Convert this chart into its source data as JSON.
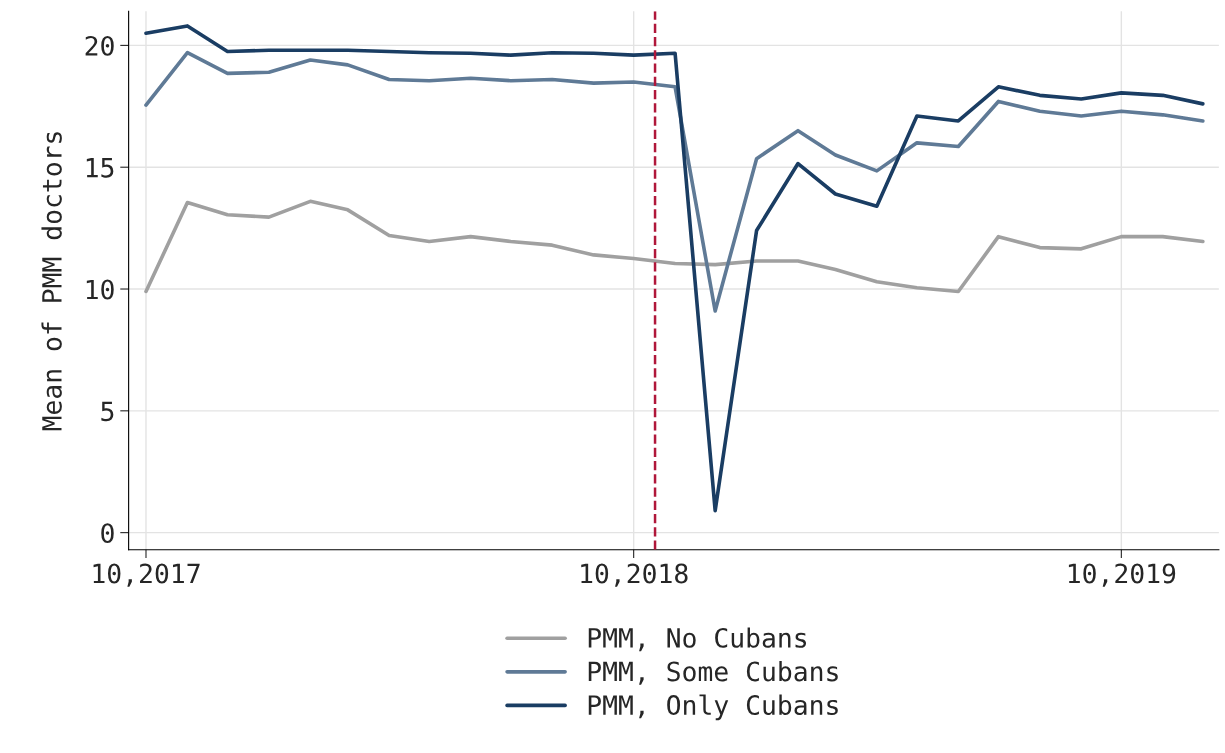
{
  "chart_data": {
    "type": "line",
    "ylabel": "Mean of PMM doctors",
    "x": [
      "2017-10",
      "2017-11",
      "2017-12",
      "2018-01",
      "2018-02",
      "2018-03",
      "2018-04",
      "2018-05",
      "2018-06",
      "2018-07",
      "2018-08",
      "2018-09",
      "2018-10",
      "2018-11",
      "2018-12",
      "2019-01",
      "2019-02",
      "2019-03",
      "2019-04",
      "2019-05",
      "2019-06",
      "2019-07",
      "2019-08",
      "2019-09",
      "2019-10",
      "2019-11",
      "2019-12"
    ],
    "series": [
      {
        "name": "PMM, No Cubans",
        "color": "#a0a0a0",
        "values": [
          9.9,
          13.55,
          13.05,
          12.95,
          13.6,
          13.25,
          12.2,
          11.95,
          12.15,
          11.95,
          11.8,
          11.4,
          11.25,
          11.05,
          11.0,
          11.15,
          11.15,
          10.8,
          10.3,
          10.05,
          9.9,
          12.15,
          11.7,
          11.65,
          12.15,
          12.15,
          11.95
        ]
      },
      {
        "name": "PMM, Some Cubans",
        "color": "#5f7a96",
        "values": [
          17.55,
          19.7,
          18.85,
          18.9,
          19.4,
          19.2,
          18.6,
          18.55,
          18.65,
          18.55,
          18.6,
          18.45,
          18.5,
          18.3,
          9.1,
          15.35,
          16.5,
          15.5,
          14.85,
          16.0,
          15.85,
          17.7,
          17.3,
          17.1,
          17.3,
          17.15,
          16.9
        ]
      },
      {
        "name": "PMM, Only Cubans",
        "color": "#1a3d63",
        "values": [
          20.5,
          20.8,
          19.75,
          19.8,
          19.8,
          19.8,
          19.75,
          19.7,
          19.68,
          19.6,
          19.7,
          19.68,
          19.6,
          19.68,
          0.9,
          12.4,
          15.15,
          13.9,
          13.4,
          17.1,
          16.9,
          18.3,
          17.95,
          17.8,
          18.05,
          17.95,
          17.6
        ]
      }
    ],
    "xlim": [
      "2017-09-18",
      "2019-12-13"
    ],
    "xticks": [
      {
        "value": "2017-10",
        "label": "10,2017"
      },
      {
        "value": "2018-10",
        "label": "10,2018"
      },
      {
        "value": "2019-10",
        "label": "10,2019"
      }
    ],
    "ylim": [
      -0.7,
      21.4
    ],
    "yticks": [
      0,
      5,
      10,
      15,
      20
    ],
    "ref_lines": [
      {
        "axis": "x",
        "value": "2018-10-17",
        "color": "#b0173a",
        "line_style": "dashed"
      }
    ],
    "grid": true,
    "legend": "bottom",
    "marker": "none",
    "line_style": "solid"
  }
}
